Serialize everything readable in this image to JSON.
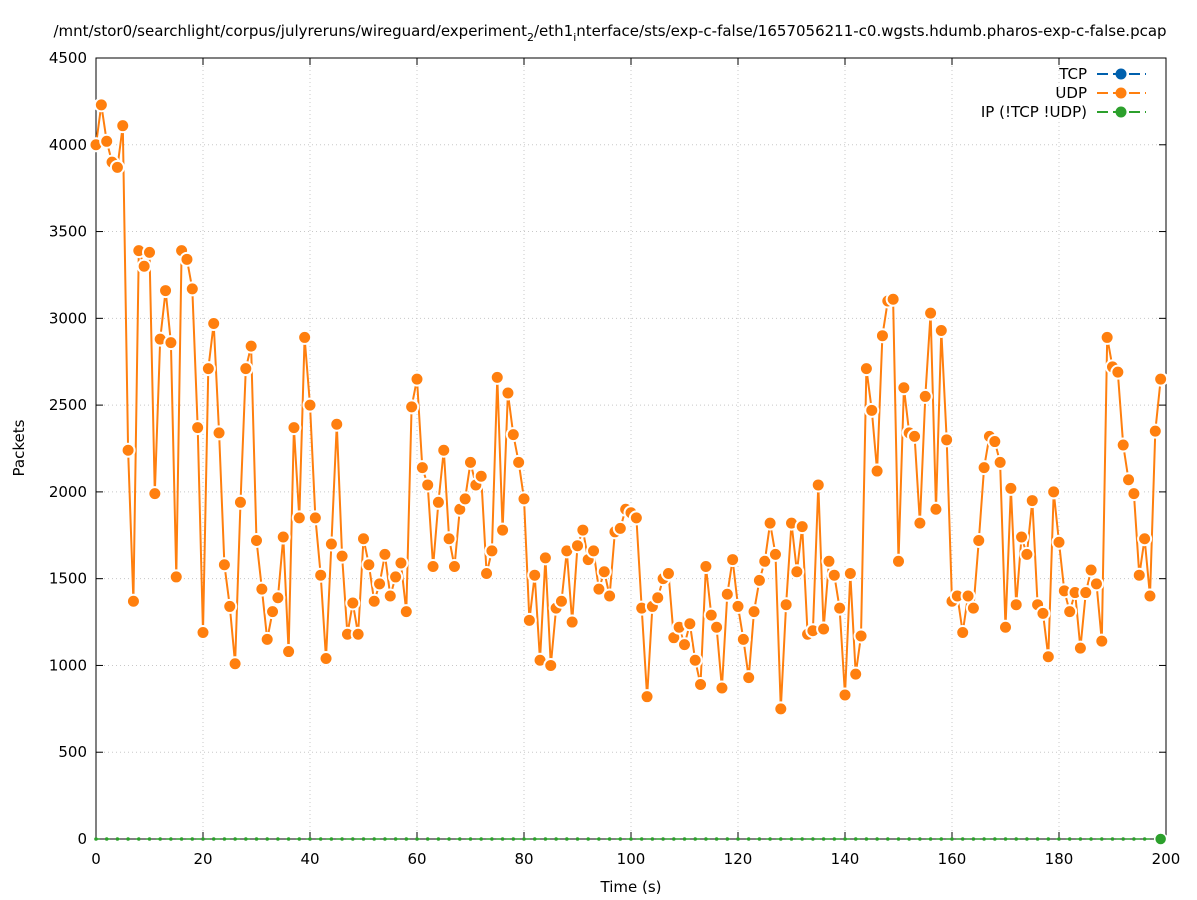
{
  "chart_data": {
    "type": "line",
    "title": "/mnt/stor0/searchlight/corpus/julyreruns/wireguard/experiment",
    "title_sub": "2",
    "title_mid": "/eth1",
    "title_sub2": "i",
    "title_end": "nterface/sts/exp-c-false/1657056211-c0.wgsts.hdumb.pharos-exp-c-false.pcap",
    "xlabel": "Time (s)",
    "ylabel": "Packets",
    "xlim": [
      0,
      200
    ],
    "ylim": [
      0,
      4500
    ],
    "xticks": [
      0,
      20,
      40,
      60,
      80,
      100,
      120,
      140,
      160,
      180,
      200
    ],
    "yticks": [
      0,
      500,
      1000,
      1500,
      2000,
      2500,
      3000,
      3500,
      4000,
      4500
    ],
    "grid": true,
    "legend_position": "top-right",
    "series": [
      {
        "name": "TCP",
        "color": "#0060ad",
        "x": [],
        "values": []
      },
      {
        "name": "UDP",
        "color": "#ff7f0e",
        "x": [
          0,
          1,
          2,
          3,
          4,
          5,
          6,
          7,
          8,
          9,
          10,
          11,
          12,
          13,
          14,
          15,
          16,
          17,
          18,
          19,
          20,
          21,
          22,
          23,
          24,
          25,
          26,
          27,
          28,
          29,
          30,
          31,
          32,
          33,
          34,
          35,
          36,
          37,
          38,
          39,
          40,
          41,
          42,
          43,
          44,
          45,
          46,
          47,
          48,
          49,
          50,
          51,
          52,
          53,
          54,
          55,
          56,
          57,
          58,
          59,
          60,
          61,
          62,
          63,
          64,
          65,
          66,
          67,
          68,
          69,
          70,
          71,
          72,
          73,
          74,
          75,
          76,
          77,
          78,
          79,
          80,
          81,
          82,
          83,
          84,
          85,
          86,
          87,
          88,
          89,
          90,
          91,
          92,
          93,
          94,
          95,
          96,
          97,
          98,
          99,
          100,
          101,
          102,
          103,
          104,
          105,
          106,
          107,
          108,
          109,
          110,
          111,
          112,
          113,
          114,
          115,
          116,
          117,
          118,
          119,
          120,
          121,
          122,
          123,
          124,
          125,
          126,
          127,
          128,
          129,
          130,
          131,
          132,
          133,
          134,
          135,
          136,
          137,
          138,
          139,
          140,
          141,
          142,
          143,
          144,
          145,
          146,
          147,
          148,
          149,
          150,
          151,
          152,
          153,
          154,
          155,
          156,
          157,
          158,
          159,
          160,
          161,
          162,
          163,
          164,
          165,
          166,
          167,
          168,
          169,
          170,
          171,
          172,
          173,
          174,
          175,
          176,
          177,
          178,
          179,
          180,
          181,
          182,
          183,
          184,
          185,
          186,
          187,
          188,
          189,
          190,
          191,
          192,
          193,
          194,
          195,
          196,
          197,
          198,
          199
        ],
        "values": [
          4000,
          4230,
          4020,
          3900,
          3870,
          4110,
          2240,
          1370,
          3390,
          3300,
          3380,
          1990,
          2880,
          3160,
          2860,
          1510,
          3390,
          3340,
          3170,
          2370,
          1190,
          2710,
          2970,
          2340,
          1580,
          1340,
          1010,
          1940,
          2710,
          2840,
          1720,
          1440,
          1150,
          1310,
          1390,
          1740,
          1080,
          2370,
          1850,
          2890,
          2500,
          1850,
          1520,
          1040,
          1700,
          2390,
          1630,
          1180,
          1360,
          1180,
          1730,
          1580,
          1370,
          1470,
          1640,
          1400,
          1510,
          1590,
          1310,
          2490,
          2650,
          2140,
          2040,
          1570,
          1940,
          2240,
          1730,
          1570,
          1900,
          1960,
          2170,
          2040,
          2090,
          1530,
          1660,
          2660,
          1780,
          2570,
          2330,
          2170,
          1960,
          1260,
          1520,
          1030,
          1620,
          1000,
          1330,
          1370,
          1660,
          1250,
          1690,
          1780,
          1610,
          1660,
          1440,
          1540,
          1400,
          1770,
          1790,
          1900,
          1880,
          1850,
          1330,
          820,
          1340,
          1390,
          1500,
          1530,
          1160,
          1220,
          1120,
          1240,
          1030,
          890,
          1570,
          1290,
          1220,
          870,
          1410,
          1610,
          1340,
          1150,
          930,
          1310,
          1490,
          1600,
          1820,
          1640,
          750,
          1350,
          1820,
          1540,
          1800,
          1180,
          1200,
          2040,
          1210,
          1600,
          1520,
          1330,
          830,
          1530,
          950,
          1170,
          2710,
          2470,
          2120,
          2900,
          3100,
          3110,
          1600,
          2600,
          2340,
          2320,
          1820,
          2550,
          3030,
          1900,
          2930,
          2300,
          1370,
          1400,
          1190,
          1400,
          1330,
          1720,
          2140,
          2320,
          2290,
          2170,
          1220,
          2020,
          1350,
          1740,
          1640,
          1950,
          1350,
          1300,
          1050,
          2000,
          1710,
          1430,
          1310,
          1420,
          1100,
          1420,
          1550,
          1470,
          1140,
          2890,
          2720,
          2690,
          2270,
          2070,
          1990,
          1520,
          1730,
          1400,
          2350,
          2650
        ]
      },
      {
        "name": "IP (!TCP  !UDP)",
        "color": "#2ca02c",
        "x": [
          0,
          2,
          4,
          6,
          8,
          10,
          12,
          14,
          16,
          18,
          20,
          22,
          24,
          26,
          28,
          30,
          32,
          34,
          36,
          38,
          40,
          42,
          44,
          46,
          48,
          50,
          52,
          54,
          56,
          58,
          60,
          62,
          64,
          66,
          68,
          70,
          72,
          74,
          76,
          78,
          80,
          82,
          84,
          86,
          88,
          90,
          92,
          94,
          96,
          98,
          100,
          102,
          104,
          106,
          108,
          110,
          112,
          114,
          116,
          118,
          120,
          122,
          124,
          126,
          128,
          130,
          132,
          134,
          136,
          138,
          140,
          142,
          144,
          146,
          148,
          150,
          152,
          154,
          156,
          158,
          160,
          162,
          164,
          166,
          168,
          170,
          172,
          174,
          176,
          178,
          180,
          182,
          184,
          186,
          188,
          190,
          192,
          194,
          196,
          198,
          199
        ],
        "values": [
          0,
          0,
          0,
          0,
          0,
          0,
          0,
          0,
          0,
          0,
          0,
          0,
          0,
          0,
          0,
          0,
          0,
          0,
          0,
          0,
          0,
          0,
          0,
          0,
          0,
          0,
          0,
          0,
          0,
          0,
          0,
          0,
          0,
          0,
          0,
          0,
          0,
          0,
          0,
          0,
          0,
          0,
          0,
          0,
          0,
          0,
          0,
          0,
          0,
          0,
          0,
          0,
          0,
          0,
          0,
          0,
          0,
          0,
          0,
          0,
          0,
          0,
          0,
          0,
          0,
          0,
          0,
          0,
          0,
          0,
          0,
          0,
          0,
          0,
          0,
          0,
          0,
          0,
          0,
          0,
          0,
          0,
          0,
          0,
          0,
          0,
          0,
          0,
          0,
          0,
          0,
          0,
          0,
          0,
          0,
          0,
          0,
          0,
          0,
          0,
          0
        ]
      }
    ]
  }
}
